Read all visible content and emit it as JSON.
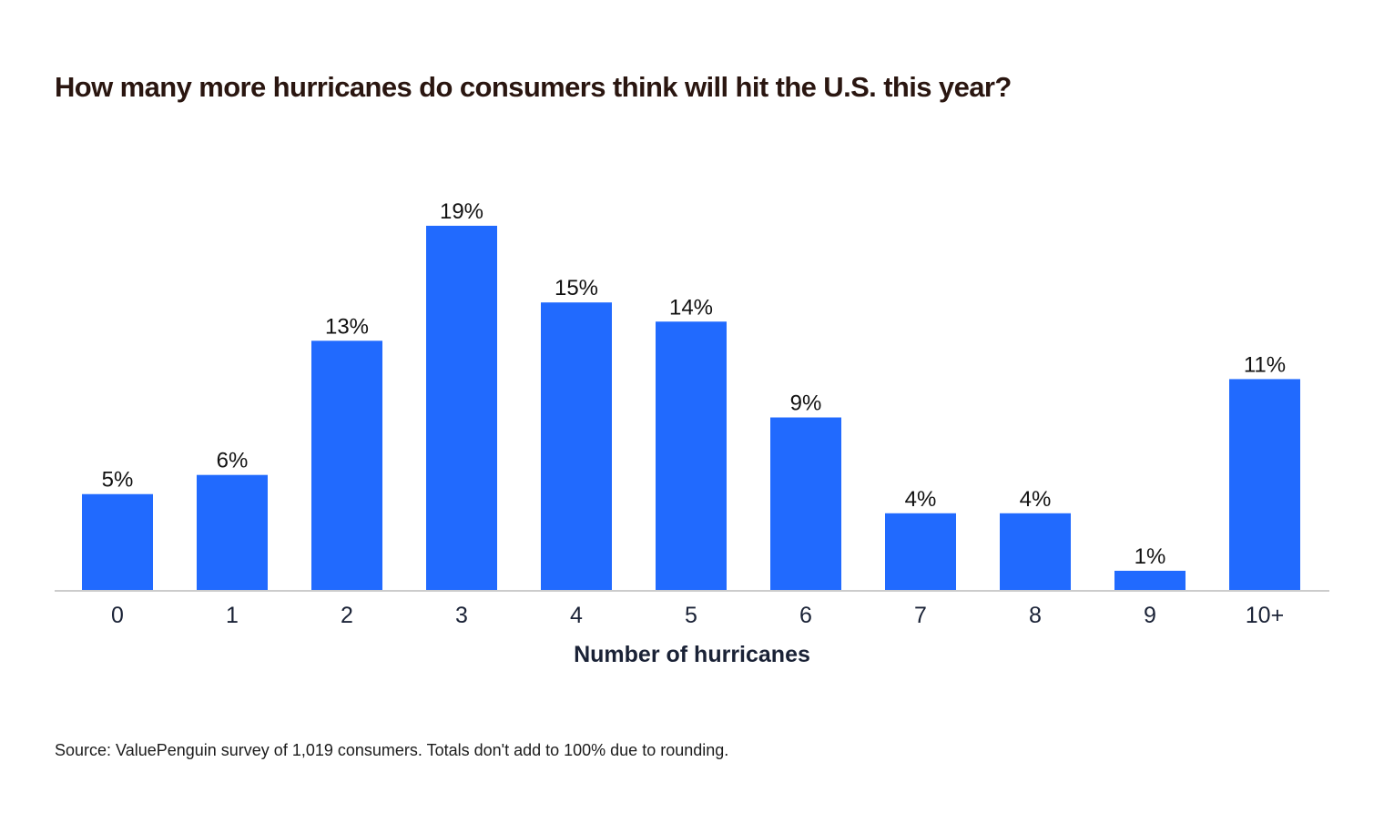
{
  "chart_data": {
    "type": "bar",
    "title": "How many more hurricanes do consumers think will hit the U.S. this year?",
    "xlabel": "Number of hurricanes",
    "ylabel": "",
    "categories": [
      "0",
      "1",
      "2",
      "3",
      "4",
      "5",
      "6",
      "7",
      "8",
      "9",
      "10+"
    ],
    "values": [
      5,
      6,
      13,
      19,
      15,
      14,
      9,
      4,
      4,
      1,
      11
    ],
    "data_labels": [
      "5%",
      "6%",
      "13%",
      "19%",
      "15%",
      "14%",
      "9%",
      "4%",
      "4%",
      "1%",
      "11%"
    ],
    "ylim": [
      0,
      20
    ],
    "grid": false,
    "bar_color": "#216afe",
    "axis_color": "#cccccc",
    "source": "Source: ValuePenguin survey of 1,019 consumers. Totals don't add to 100% due to rounding."
  }
}
